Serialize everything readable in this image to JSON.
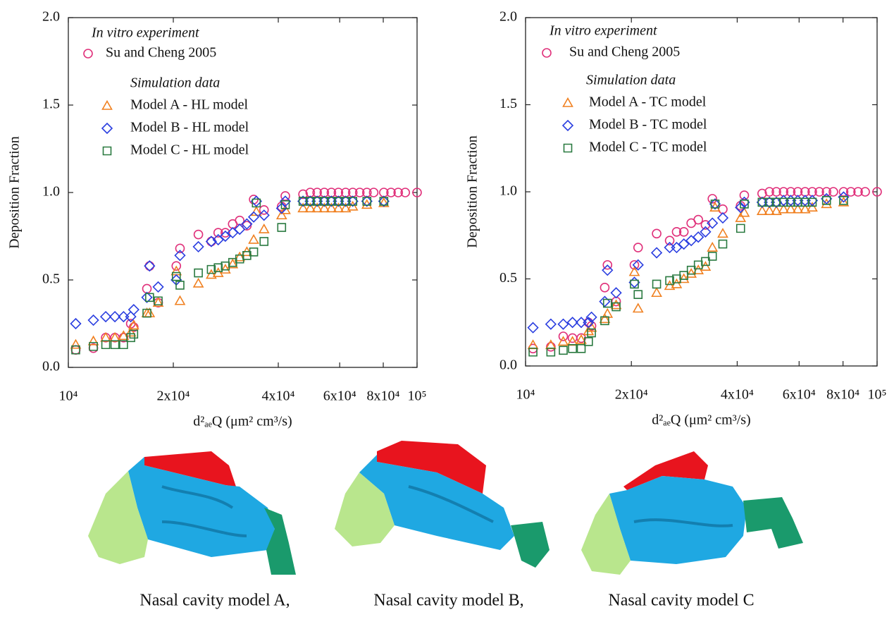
{
  "chart_data": [
    {
      "type": "scatter",
      "xscale": "log",
      "xlabel": "d²ₐₑQ (μm² cm³/s)",
      "ylabel": "Deposition Fraction",
      "legend_titles": [
        "In vitro experiment",
        "Simulation data"
      ],
      "xlim": [
        10000,
        100000
      ],
      "xticks": [
        {
          "value": 10000,
          "label": "10⁴"
        },
        {
          "value": 20000,
          "label": "2x10⁴"
        },
        {
          "value": 40000,
          "label": "4x10⁴"
        },
        {
          "value": 60000,
          "label": "6x10⁴"
        },
        {
          "value": 80000,
          "label": "8x10⁴"
        },
        {
          "value": 100000,
          "label": "10⁵"
        }
      ],
      "ylim": [
        0,
        2.0
      ],
      "yticks": [
        {
          "value": 0,
          "label": "0.0"
        },
        0.5,
        {
          "value": 1.0,
          "label": "1.0"
        },
        1.5,
        {
          "value": 2.0,
          "label": "2.0"
        }
      ],
      "series": [
        {
          "name": "Su and Cheng 2005",
          "marker": "circle",
          "color": "#e0307a",
          "x": [
            10500,
            11800,
            12800,
            13600,
            14400,
            15100,
            15400,
            16800,
            17100,
            18100,
            20400,
            20900,
            23600,
            25700,
            26900,
            28200,
            29600,
            31000,
            32500,
            34000,
            36400,
            40900,
            41900,
            47100,
            49400,
            51700,
            54200,
            56800,
            59500,
            62400,
            65400,
            68500,
            71800,
            75100,
            80300,
            84200,
            88300,
            92500,
            100000
          ],
          "values": [
            0.1,
            0.11,
            0.17,
            0.17,
            0.17,
            0.25,
            0.23,
            0.45,
            0.58,
            0.37,
            0.58,
            0.68,
            0.76,
            0.72,
            0.77,
            0.77,
            0.82,
            0.84,
            0.81,
            0.96,
            0.9,
            0.92,
            0.98,
            0.99,
            1.0,
            1.0,
            1.0,
            1.0,
            1.0,
            1.0,
            1.0,
            1.0,
            1.0,
            1.0,
            1.0,
            1.0,
            1.0,
            1.0,
            1.0
          ]
        },
        {
          "name": "Model A - HL model",
          "marker": "triangle",
          "color": "#f08020",
          "x": [
            10500,
            11800,
            12800,
            13600,
            14400,
            15100,
            15400,
            16800,
            17100,
            18100,
            20400,
            20900,
            23600,
            25700,
            26900,
            28200,
            29600,
            31000,
            32500,
            34000,
            34600,
            36400,
            40900,
            41900,
            47100,
            49400,
            51700,
            54200,
            56800,
            59500,
            62400,
            65400,
            71800,
            80300
          ],
          "values": [
            0.13,
            0.15,
            0.17,
            0.17,
            0.18,
            0.2,
            0.24,
            0.31,
            0.31,
            0.37,
            0.55,
            0.38,
            0.48,
            0.53,
            0.54,
            0.56,
            0.59,
            0.63,
            0.66,
            0.73,
            0.89,
            0.79,
            0.87,
            0.9,
            0.91,
            0.91,
            0.91,
            0.91,
            0.91,
            0.91,
            0.91,
            0.92,
            0.93,
            0.94
          ]
        },
        {
          "name": "Model B - HL model",
          "marker": "diamond",
          "color": "#2a3ee0",
          "x": [
            10500,
            11800,
            12800,
            13600,
            14400,
            15100,
            15400,
            16800,
            17100,
            18100,
            20400,
            20900,
            23600,
            25700,
            26900,
            28200,
            29600,
            31000,
            32500,
            34000,
            34600,
            36400,
            40900,
            41900,
            47100,
            49400,
            51700,
            54200,
            56800,
            59500,
            62400,
            65400,
            71800,
            80300
          ],
          "values": [
            0.25,
            0.27,
            0.29,
            0.29,
            0.29,
            0.29,
            0.33,
            0.4,
            0.58,
            0.46,
            0.5,
            0.64,
            0.69,
            0.72,
            0.73,
            0.75,
            0.77,
            0.79,
            0.82,
            0.86,
            0.95,
            0.87,
            0.91,
            0.95,
            0.95,
            0.95,
            0.95,
            0.95,
            0.95,
            0.95,
            0.95,
            0.95,
            0.95,
            0.95
          ]
        },
        {
          "name": "Model C - HL model",
          "marker": "square",
          "color": "#2a7a40",
          "x": [
            10500,
            11800,
            12800,
            13600,
            14400,
            15100,
            15400,
            16800,
            17100,
            18100,
            20400,
            20900,
            23600,
            25700,
            26900,
            28200,
            29600,
            31000,
            32500,
            34000,
            34600,
            36400,
            40900,
            41900,
            47100,
            49400,
            51700,
            54200,
            56800,
            59500,
            62400,
            65400,
            71800,
            80300
          ],
          "values": [
            0.1,
            0.12,
            0.13,
            0.13,
            0.13,
            0.17,
            0.19,
            0.31,
            0.4,
            0.38,
            0.52,
            0.47,
            0.54,
            0.56,
            0.57,
            0.58,
            0.6,
            0.62,
            0.64,
            0.66,
            0.94,
            0.72,
            0.8,
            0.93,
            0.95,
            0.95,
            0.95,
            0.95,
            0.95,
            0.95,
            0.95,
            0.95,
            0.95,
            0.95
          ]
        }
      ]
    },
    {
      "type": "scatter",
      "xscale": "log",
      "xlabel": "d²ₐₑQ (μm² cm³/s)",
      "ylabel": "Deposition Fraction",
      "legend_titles": [
        "In vitro experiment",
        "Simulation data"
      ],
      "xlim": [
        10000,
        100000
      ],
      "xticks": [
        {
          "value": 10000,
          "label": "10⁴"
        },
        {
          "value": 20000,
          "label": "2x10⁴"
        },
        {
          "value": 40000,
          "label": "4x10⁴"
        },
        {
          "value": 60000,
          "label": "6x10⁴"
        },
        {
          "value": 80000,
          "label": "8x10⁴"
        },
        {
          "value": 100000,
          "label": "10⁵"
        }
      ],
      "ylim": [
        0,
        2.0
      ],
      "yticks": [
        {
          "value": 0,
          "label": "0.0"
        },
        0.5,
        {
          "value": 1.0,
          "label": "1.0"
        },
        1.5,
        {
          "value": 2.0,
          "label": "2.0"
        }
      ],
      "series": [
        {
          "name": "Su and Cheng 2005",
          "marker": "circle",
          "color": "#e0307a",
          "x": [
            10500,
            11800,
            12800,
            13600,
            14400,
            15100,
            15400,
            16800,
            17100,
            18100,
            20400,
            20900,
            23600,
            25700,
            26900,
            28200,
            29600,
            31000,
            32500,
            34000,
            36400,
            40900,
            41900,
            47100,
            49400,
            51700,
            54200,
            56800,
            59500,
            62400,
            65400,
            68500,
            71800,
            75100,
            80300,
            84200,
            88300,
            92500,
            100000
          ],
          "values": [
            0.1,
            0.11,
            0.17,
            0.16,
            0.16,
            0.25,
            0.23,
            0.45,
            0.58,
            0.37,
            0.58,
            0.68,
            0.76,
            0.72,
            0.77,
            0.77,
            0.82,
            0.84,
            0.81,
            0.96,
            0.9,
            0.92,
            0.98,
            0.99,
            1.0,
            1.0,
            1.0,
            1.0,
            1.0,
            1.0,
            1.0,
            1.0,
            1.0,
            1.0,
            1.0,
            1.0,
            1.0,
            1.0,
            1.0
          ]
        },
        {
          "name": "Model A - TC model",
          "marker": "triangle",
          "color": "#f08020",
          "x": [
            10500,
            11800,
            12800,
            13600,
            14400,
            15100,
            15400,
            16800,
            17100,
            18100,
            20400,
            20900,
            23600,
            25700,
            26900,
            28200,
            29600,
            31000,
            32500,
            34000,
            34600,
            36400,
            40900,
            41900,
            47100,
            49400,
            51700,
            54200,
            56800,
            59500,
            62400,
            65400,
            71800,
            80300
          ],
          "values": [
            0.12,
            0.12,
            0.14,
            0.14,
            0.15,
            0.2,
            0.22,
            0.27,
            0.3,
            0.35,
            0.54,
            0.33,
            0.42,
            0.46,
            0.47,
            0.5,
            0.53,
            0.55,
            0.57,
            0.68,
            0.91,
            0.76,
            0.85,
            0.88,
            0.89,
            0.89,
            0.89,
            0.9,
            0.9,
            0.9,
            0.9,
            0.91,
            0.93,
            0.94
          ]
        },
        {
          "name": "Model B - TC model",
          "marker": "diamond",
          "color": "#2a3ee0",
          "x": [
            10500,
            11800,
            12800,
            13600,
            14400,
            15100,
            15400,
            16800,
            17100,
            18100,
            20400,
            20900,
            23600,
            25700,
            26900,
            28200,
            29600,
            31000,
            32500,
            34000,
            34600,
            36400,
            40900,
            41900,
            47100,
            49400,
            51700,
            54200,
            56800,
            59500,
            62400,
            65400,
            71800,
            80300
          ],
          "values": [
            0.22,
            0.24,
            0.24,
            0.25,
            0.25,
            0.25,
            0.28,
            0.37,
            0.55,
            0.42,
            0.48,
            0.58,
            0.65,
            0.68,
            0.68,
            0.7,
            0.72,
            0.74,
            0.77,
            0.82,
            0.93,
            0.85,
            0.91,
            0.94,
            0.94,
            0.94,
            0.94,
            0.95,
            0.95,
            0.95,
            0.95,
            0.95,
            0.96,
            0.97
          ]
        },
        {
          "name": "Model C - TC model",
          "marker": "square",
          "color": "#2a7a40",
          "x": [
            10500,
            11800,
            12800,
            13600,
            14400,
            15100,
            15400,
            16800,
            17100,
            18100,
            20400,
            20900,
            23600,
            25700,
            26900,
            28200,
            29600,
            31000,
            32500,
            34000,
            34600,
            36400,
            40900,
            41900,
            47100,
            49400,
            51700,
            54200,
            56800,
            59500,
            62400,
            65400,
            71800,
            80300
          ],
          "values": [
            0.08,
            0.08,
            0.09,
            0.1,
            0.1,
            0.14,
            0.19,
            0.26,
            0.36,
            0.34,
            0.47,
            0.41,
            0.47,
            0.49,
            0.5,
            0.52,
            0.55,
            0.58,
            0.6,
            0.63,
            0.93,
            0.7,
            0.79,
            0.93,
            0.94,
            0.94,
            0.94,
            0.94,
            0.94,
            0.94,
            0.94,
            0.94,
            0.95,
            0.95
          ]
        }
      ]
    }
  ],
  "figure": {
    "captions": [
      "Nasal cavity model A,",
      "Nasal cavity model B,",
      "Nasal cavity model C"
    ]
  }
}
